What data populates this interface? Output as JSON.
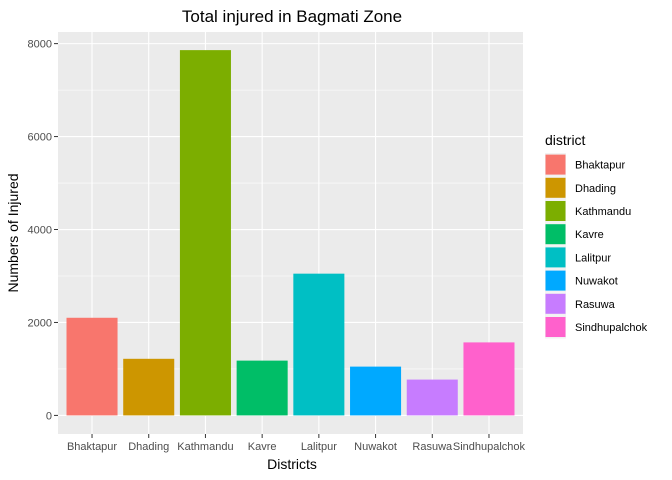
{
  "chart_data": {
    "type": "bar",
    "title": "Total injured in Bagmati Zone",
    "xlabel": "Districts",
    "ylabel": "Numbers of Injured",
    "categories": [
      "Bhaktapur",
      "Dhading",
      "Kathmandu",
      "Kavre",
      "Lalitpur",
      "Nuwakot",
      "Rasuwa",
      "Sindhupalchok"
    ],
    "values": [
      2101,
      1218,
      7860,
      1179,
      3050,
      1050,
      771,
      1571
    ],
    "colors": [
      "#F8766D",
      "#CD9600",
      "#7CAE00",
      "#00BE67",
      "#00BFC4",
      "#00A9FF",
      "#C77CFF",
      "#FF61CC"
    ],
    "ylim": [
      -400,
      8250
    ],
    "yticks": [
      0,
      2000,
      4000,
      6000,
      8000
    ],
    "ytick_labels": [
      "0",
      "2000",
      "4000",
      "6000",
      "8000"
    ],
    "grid": true,
    "legend": {
      "title": "district",
      "position": "right",
      "items": [
        "Bhaktapur",
        "Dhading",
        "Kathmandu",
        "Kavre",
        "Lalitpur",
        "Nuwakot",
        "Rasuwa",
        "Sindhupalchok"
      ]
    },
    "panel_background": "#EBEBEB",
    "grid_color": "#FFFFFF"
  }
}
